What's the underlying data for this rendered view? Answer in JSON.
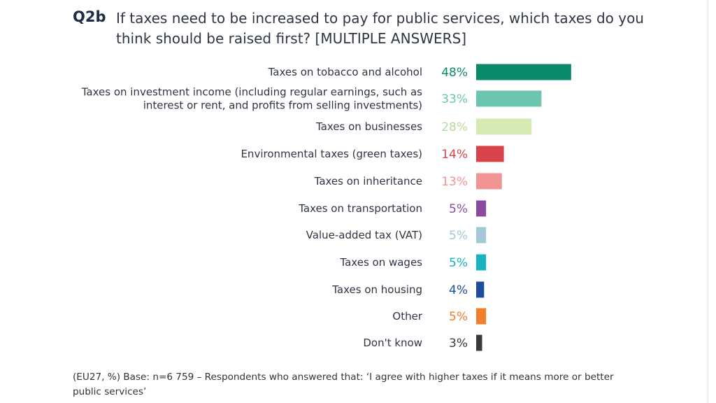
{
  "question": {
    "code": "Q2b",
    "text": "If taxes need to be increased to pay for public services, which taxes do you think should be raised first? [MULTIPLE ANSWERS]"
  },
  "chart_data": {
    "type": "bar",
    "orientation": "horizontal",
    "value_suffix": "%",
    "xlim": [
      0,
      50
    ],
    "categories": [
      [
        "Taxes on tobacco and alcohol"
      ],
      [
        "Taxes on investment income (including regular earnings, such as",
        "interest or rent, and profits from selling investments)"
      ],
      [
        "Taxes on businesses"
      ],
      [
        "Environmental taxes (green taxes)"
      ],
      [
        "Taxes on inheritance"
      ],
      [
        "Taxes on transportation"
      ],
      [
        "Value-added tax (VAT)"
      ],
      [
        "Taxes on wages"
      ],
      [
        "Taxes on housing"
      ],
      [
        "Other"
      ],
      [
        "Don't know"
      ]
    ],
    "values": [
      48,
      33,
      28,
      14,
      13,
      5,
      5,
      5,
      4,
      5,
      3
    ],
    "colors": [
      "#0b8a6b",
      "#6cc5b0",
      "#d6eab4",
      "#d9434a",
      "#f09393",
      "#8a4c9c",
      "#a5c8d4",
      "#17b3c1",
      "#1e4d9e",
      "#f07e2a",
      "#3a3a3a"
    ],
    "label_colors": [
      "#0b8a6b",
      "#6cc5b0",
      "#bcd99a",
      "#d9434a",
      "#f09393",
      "#8a4c9c",
      "#a5c8d4",
      "#17b3c1",
      "#1e4d9e",
      "#f07e2a",
      "#3a3a3a"
    ]
  },
  "footnote": "(EU27, %) Base: n=6 759 – Respondents who answered that: ‘I agree with higher taxes if it means more or better public services’"
}
